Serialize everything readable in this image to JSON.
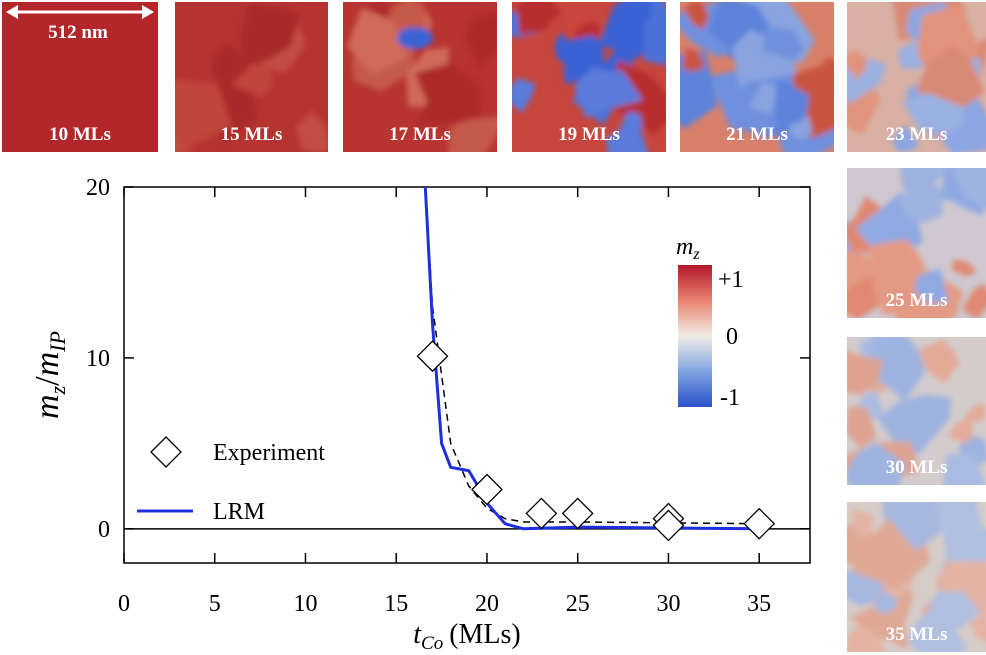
{
  "chart_data": {
    "type": "line",
    "x_label": {
      "symbol": "t",
      "subscript": "Co",
      "unit": "(MLs)"
    },
    "y_label": {
      "numerator": "m",
      "numerator_sub": "z",
      "slash": "/",
      "denominator": "m",
      "denominator_sub": "IP"
    },
    "xlim": [
      0,
      37.8
    ],
    "ylim": [
      -2,
      20
    ],
    "xticks": [
      0,
      5,
      10,
      15,
      20,
      25,
      30,
      35
    ],
    "yticks": [
      0,
      10,
      20
    ],
    "zero_line": true,
    "series": [
      {
        "name": "Experiment",
        "kind": "scatter",
        "marker": "diamond",
        "color": "#000000",
        "x": [
          17,
          20,
          23,
          25,
          30,
          30,
          35
        ],
        "values": [
          10.1,
          2.3,
          0.9,
          0.9,
          0.6,
          0.2,
          0.3
        ]
      },
      {
        "name": "LRM",
        "kind": "line",
        "color": "#1f2fe0",
        "x": [
          16.6,
          17,
          17.5,
          18,
          18.5,
          19,
          19.5,
          20,
          21,
          22,
          25,
          30,
          35
        ],
        "values": [
          20,
          12,
          5,
          3.6,
          3.5,
          3.4,
          2.5,
          1.5,
          0.3,
          0,
          0.1,
          0.05,
          0
        ]
      },
      {
        "kind": "dashed",
        "color": "#000000",
        "x": [
          16.6,
          17,
          18,
          19,
          20,
          21,
          22,
          25,
          30,
          35
        ],
        "values": [
          20,
          13,
          5,
          2.5,
          1.2,
          0.6,
          0.4,
          0.4,
          0.35,
          0.3
        ]
      }
    ],
    "colorbar": {
      "title": {
        "symbol": "m",
        "subscript": "z"
      },
      "labels": [
        "+1",
        "0",
        "-1"
      ]
    }
  },
  "maps": {
    "scale_bar": "512 nm",
    "labels": [
      "10 MLs",
      "15 MLs",
      "17 MLs",
      "19 MLs",
      "21 MLs",
      "23 MLs",
      "25 MLs",
      "30 MLs",
      "35 MLs"
    ]
  }
}
